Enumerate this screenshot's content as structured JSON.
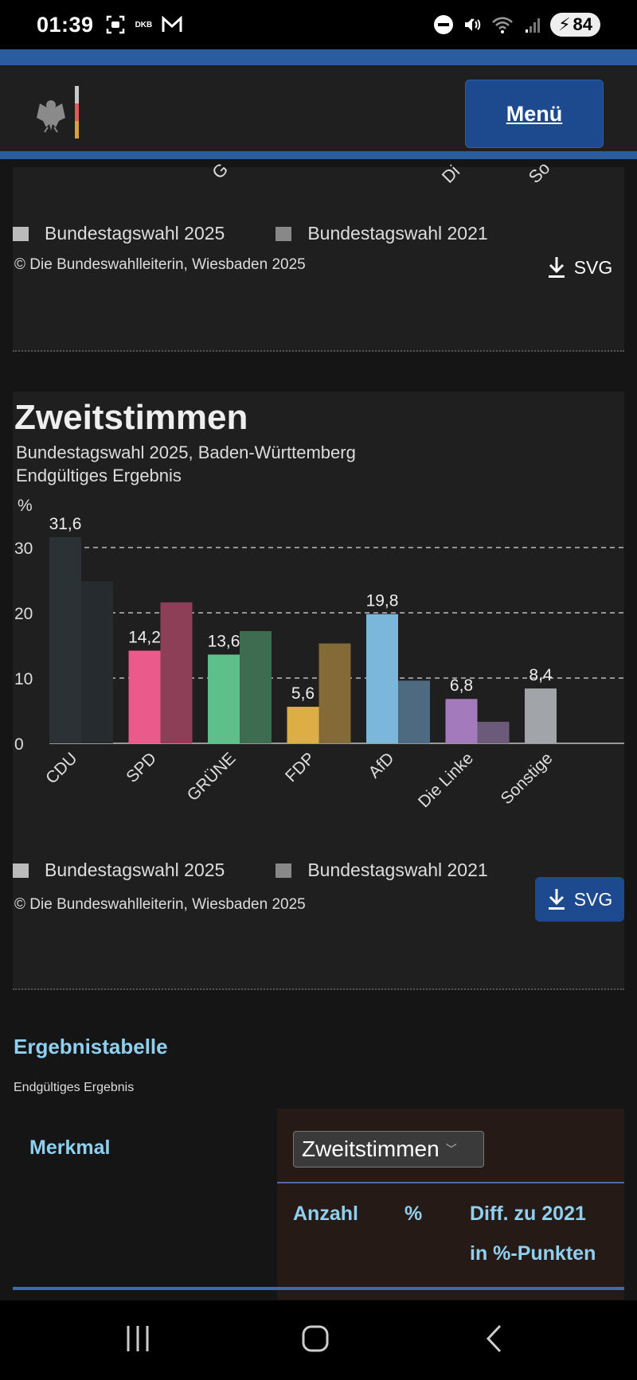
{
  "status_bar": {
    "time": "01:39",
    "notif_label": "DKB",
    "battery": "84",
    "icons": [
      "screenshot-icon",
      "dkb-icon",
      "gmail-icon",
      "dnd-icon",
      "mute-icon",
      "wifi-icon",
      "signal-icon",
      "battery-icon"
    ]
  },
  "header": {
    "logo": "bundesadler-logo",
    "menu_label": "Menü"
  },
  "prev_chart": {
    "legend": [
      "Bundestagswahl 2025",
      "Bundestagswahl 2021"
    ],
    "copyright": "© Die Bundeswahlleiterin, Wiesbaden 2025",
    "download_label": "SVG"
  },
  "chart_card": {
    "legend": [
      "Bundestagswahl 2025",
      "Bundestagswahl 2021"
    ],
    "copyright": "© Die Bundeswahlleiterin, Wiesbaden 2025",
    "download_label": "SVG"
  },
  "chart_data": {
    "type": "bar",
    "title": "Zweitstimmen",
    "subtitle": "Bundestagswahl 2025, Baden-Württemberg",
    "subtitle2": "Endgültiges Ergebnis",
    "ylabel": "%",
    "xlabel": "",
    "ylim": [
      0,
      32
    ],
    "yticks": [
      0,
      10,
      20,
      30
    ],
    "grid": true,
    "legend_position": "bottom",
    "categories": [
      "CDU",
      "SPD",
      "GRÜNE",
      "FDP",
      "AfD",
      "Die Linke",
      "Sonstige"
    ],
    "series": [
      {
        "name": "Bundestagswahl 2025",
        "values": [
          31.6,
          14.2,
          13.6,
          5.6,
          19.8,
          6.8,
          8.4
        ],
        "labels": [
          "31,6",
          "14,2",
          "13,6",
          "5,6",
          "19,8",
          "6,8",
          "8,4"
        ],
        "colors": [
          "#2b3236",
          "#ea5a8a",
          "#5fbf8a",
          "#ddae45",
          "#7bb7db",
          "#a37bbd",
          "#a1a5aa"
        ]
      },
      {
        "name": "Bundestagswahl 2021",
        "values": [
          24.8,
          21.6,
          17.2,
          15.3,
          9.6,
          3.3,
          null
        ],
        "colors": [
          "#262b2e",
          "#8e3f58",
          "#3e6c51",
          "#846a36",
          "#4d6a80",
          "#6b5a7a",
          "#555a5e"
        ]
      }
    ]
  },
  "results_table": {
    "title": "Ergebnistabelle",
    "subtitle": "Endgültiges Ergebnis",
    "row_header": "Merkmal",
    "selected_option": "Zweitstimmen",
    "columns": [
      "Anzahl",
      "%",
      "Diff. zu 2021",
      "in %-Punkten"
    ]
  },
  "colors": {
    "accent_blue": "#2b5c9e",
    "button_blue": "#1d4a8f",
    "heading_cyan": "#8fd0f0"
  },
  "nav_bar": {
    "buttons": [
      "recent-apps",
      "home",
      "back"
    ]
  }
}
